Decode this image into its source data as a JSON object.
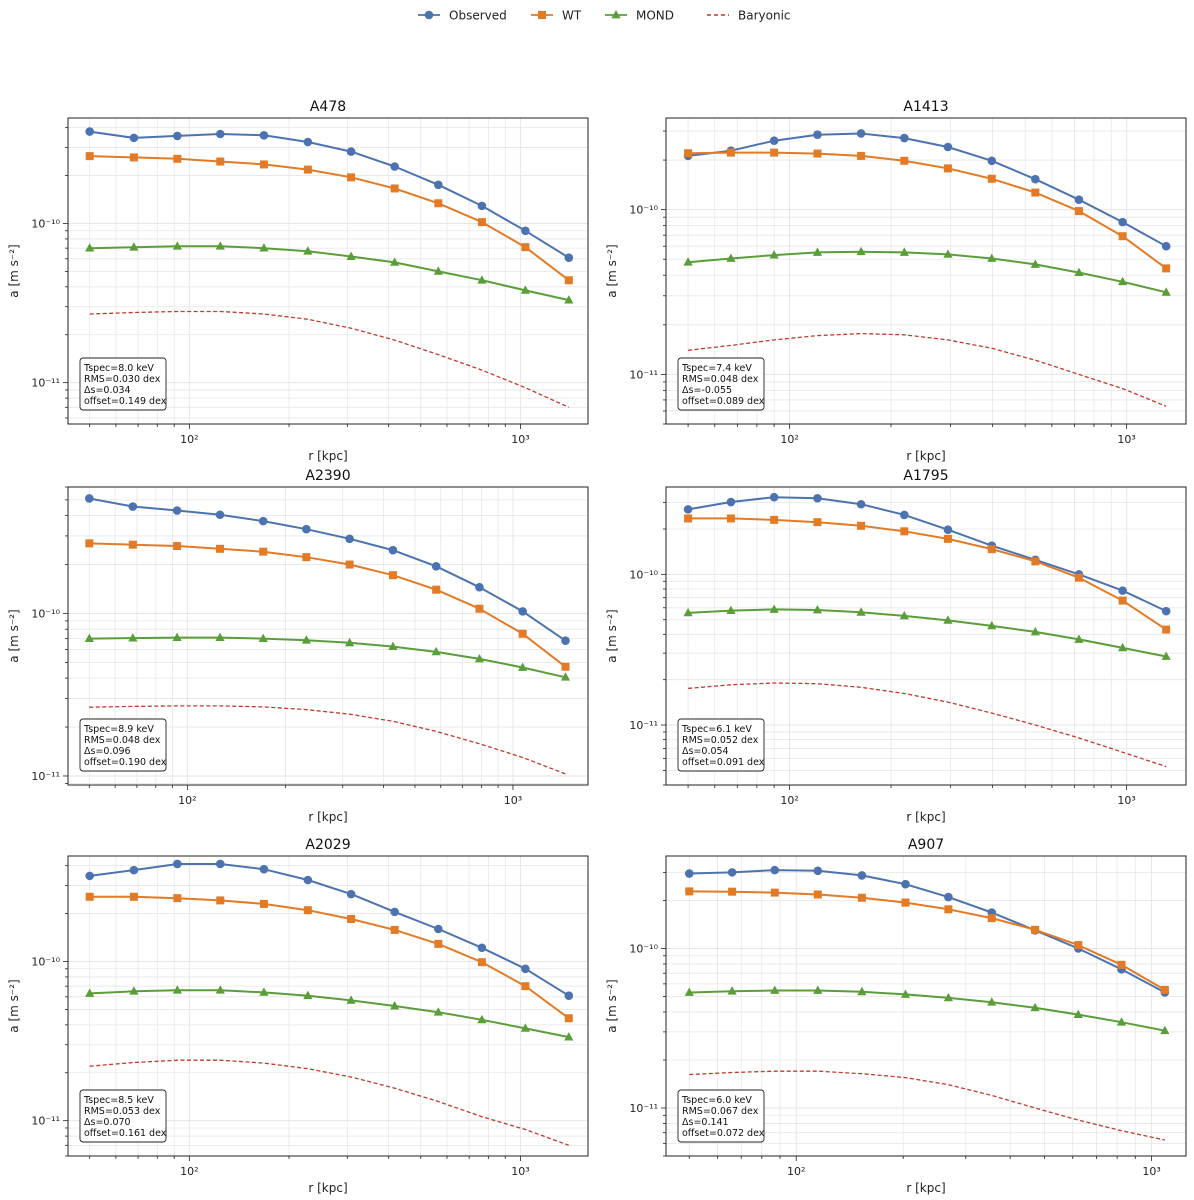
{
  "legend": {
    "entries": [
      {
        "label": "Observed",
        "color": "#4c72b0",
        "marker": "circle",
        "line": "solid"
      },
      {
        "label": "WT",
        "color": "#e37a26",
        "marker": "square",
        "line": "solid"
      },
      {
        "label": "MOND",
        "color": "#5a9e3a",
        "marker": "triangle",
        "line": "solid"
      },
      {
        "label": "Baryonic",
        "color": "#c0392b",
        "marker": "none",
        "line": "dashed"
      }
    ]
  },
  "chart_data": [
    {
      "type": "line",
      "title": "A478",
      "xlabel": "r [kpc]",
      "ylabel": "a [m s⁻²]",
      "x_scale": "log",
      "y_scale": "log",
      "xlim": [
        43,
        1600
      ],
      "ylim": [
        5.5e-12,
        4.6e-10
      ],
      "x_ticks": [
        {
          "value": 100,
          "label": "10²"
        },
        {
          "value": 1000,
          "label": "10³"
        }
      ],
      "y_ticks": [
        {
          "value": 1e-11,
          "label": "10⁻¹¹"
        },
        {
          "value": 1e-10,
          "label": "10⁻¹⁰"
        }
      ],
      "grid": true,
      "annotation": [
        "Tspec=8.0 keV",
        "RMS=0.030 dex",
        "Δs=0.034",
        "offset=0.149 dex"
      ],
      "x": [
        50,
        68,
        92,
        124,
        168,
        228,
        308,
        417,
        565,
        765,
        1035,
        1400
      ],
      "series": [
        {
          "name": "Observed",
          "values": [
            3.78e-10,
            3.45e-10,
            3.55e-10,
            3.65e-10,
            3.58e-10,
            3.25e-10,
            2.83e-10,
            2.28e-10,
            1.75e-10,
            1.29e-10,
            9e-11,
            6.1e-11
          ]
        },
        {
          "name": "WT",
          "values": [
            2.65e-10,
            2.6e-10,
            2.55e-10,
            2.45e-10,
            2.35e-10,
            2.18e-10,
            1.95e-10,
            1.66e-10,
            1.34e-10,
            1.02e-10,
            7.1e-11,
            4.4e-11
          ]
        },
        {
          "name": "MOND",
          "values": [
            7e-11,
            7.1e-11,
            7.2e-11,
            7.2e-11,
            7e-11,
            6.7e-11,
            6.2e-11,
            5.7e-11,
            5e-11,
            4.4e-11,
            3.8e-11,
            3.3e-11
          ]
        },
        {
          "name": "Baryonic",
          "values": [
            2.7e-11,
            2.76e-11,
            2.8e-11,
            2.8e-11,
            2.7e-11,
            2.5e-11,
            2.2e-11,
            1.85e-11,
            1.5e-11,
            1.2e-11,
            9.3e-12,
            7e-12
          ]
        }
      ]
    },
    {
      "type": "line",
      "title": "A1413",
      "xlabel": "r [kpc]",
      "ylabel": "a [m s⁻²]",
      "x_scale": "log",
      "y_scale": "log",
      "xlim": [
        43,
        1500
      ],
      "ylim": [
        5e-12,
        3.6e-10
      ],
      "x_ticks": [
        {
          "value": 100,
          "label": "10²"
        },
        {
          "value": 1000,
          "label": "10³"
        }
      ],
      "y_ticks": [
        {
          "value": 1e-11,
          "label": "10⁻¹¹"
        },
        {
          "value": 1e-10,
          "label": "10⁻¹⁰"
        }
      ],
      "grid": true,
      "annotation": [
        "Tspec=7.4 keV",
        "RMS=0.048 dex",
        "Δs=-0.055",
        "offset=0.089 dex"
      ],
      "x": [
        50,
        67,
        90,
        121,
        163,
        219,
        295,
        398,
        536,
        722,
        973,
        1310
      ],
      "series": [
        {
          "name": "Observed",
          "values": [
            2.12e-10,
            2.28e-10,
            2.62e-10,
            2.85e-10,
            2.9e-10,
            2.72e-10,
            2.4e-10,
            1.98e-10,
            1.53e-10,
            1.15e-10,
            8.4e-11,
            6e-11
          ]
        },
        {
          "name": "WT",
          "values": [
            2.2e-10,
            2.22e-10,
            2.22e-10,
            2.19e-10,
            2.12e-10,
            1.98e-10,
            1.78e-10,
            1.54e-10,
            1.27e-10,
            9.8e-11,
            6.9e-11,
            4.4e-11
          ]
        },
        {
          "name": "MOND",
          "values": [
            4.8e-11,
            5.05e-11,
            5.3e-11,
            5.5e-11,
            5.55e-11,
            5.5e-11,
            5.35e-11,
            5.05e-11,
            4.65e-11,
            4.15e-11,
            3.65e-11,
            3.15e-11
          ]
        },
        {
          "name": "Baryonic",
          "values": [
            1.4e-11,
            1.5e-11,
            1.62e-11,
            1.72e-11,
            1.77e-11,
            1.74e-11,
            1.62e-11,
            1.44e-11,
            1.22e-11,
            1e-11,
            8.2e-12,
            6.4e-12
          ]
        }
      ]
    },
    {
      "type": "line",
      "title": "A2390",
      "xlabel": "r [kpc]",
      "ylabel": "a [m s⁻²]",
      "x_scale": "log",
      "y_scale": "log",
      "xlim": [
        43,
        1700
      ],
      "ylim": [
        8.8e-12,
        6e-10
      ],
      "x_ticks": [
        {
          "value": 100,
          "label": "10²"
        },
        {
          "value": 1000,
          "label": "10³"
        }
      ],
      "y_ticks": [
        {
          "value": 1e-11,
          "label": "10⁻¹¹"
        },
        {
          "value": 1e-10,
          "label": "10⁻¹⁰"
        }
      ],
      "grid": true,
      "annotation": [
        "Tspec=8.9 keV",
        "RMS=0.048 dex",
        "Δs=0.096",
        "offset=0.190 dex"
      ],
      "x": [
        50,
        68,
        93,
        126,
        171,
        232,
        315,
        428,
        581,
        789,
        1071,
        1450
      ],
      "series": [
        {
          "name": "Observed",
          "values": [
            5.1e-10,
            4.55e-10,
            4.3e-10,
            4.05e-10,
            3.7e-10,
            3.3e-10,
            2.88e-10,
            2.45e-10,
            1.95e-10,
            1.45e-10,
            1.03e-10,
            6.8e-11
          ]
        },
        {
          "name": "WT",
          "values": [
            2.7e-10,
            2.65e-10,
            2.6e-10,
            2.5e-10,
            2.4e-10,
            2.22e-10,
            2e-10,
            1.72e-10,
            1.4e-10,
            1.07e-10,
            7.5e-11,
            4.7e-11
          ]
        },
        {
          "name": "MOND",
          "values": [
            7e-11,
            7.05e-11,
            7.1e-11,
            7.1e-11,
            7e-11,
            6.85e-11,
            6.6e-11,
            6.25e-11,
            5.8e-11,
            5.25e-11,
            4.65e-11,
            4.05e-11
          ]
        },
        {
          "name": "Baryonic",
          "values": [
            2.65e-11,
            2.68e-11,
            2.7e-11,
            2.7e-11,
            2.66e-11,
            2.56e-11,
            2.4e-11,
            2.17e-11,
            1.88e-11,
            1.58e-11,
            1.3e-11,
            1.03e-11
          ]
        }
      ]
    },
    {
      "type": "line",
      "title": "A1795",
      "xlabel": "r [kpc]",
      "ylabel": "a [m s⁻²]",
      "x_scale": "log",
      "y_scale": "log",
      "xlim": [
        43,
        1500
      ],
      "ylim": [
        4e-12,
        3.8e-10
      ],
      "x_ticks": [
        {
          "value": 100,
          "label": "10²"
        },
        {
          "value": 1000,
          "label": "10³"
        }
      ],
      "y_ticks": [
        {
          "value": 1e-11,
          "label": "10⁻¹¹"
        },
        {
          "value": 1e-10,
          "label": "10⁻¹⁰"
        }
      ],
      "grid": true,
      "annotation": [
        "Tspec=6.1 keV",
        "RMS=0.052 dex",
        "Δs=0.054",
        "offset=0.091 dex"
      ],
      "x": [
        50,
        67,
        90,
        121,
        163,
        219,
        295,
        398,
        536,
        722,
        973,
        1310
      ],
      "series": [
        {
          "name": "Observed",
          "values": [
            2.7e-10,
            3.02e-10,
            3.25e-10,
            3.2e-10,
            2.92e-10,
            2.48e-10,
            1.98e-10,
            1.55e-10,
            1.25e-10,
            1e-10,
            7.8e-11,
            5.7e-11
          ]
        },
        {
          "name": "WT",
          "values": [
            2.35e-10,
            2.35e-10,
            2.3e-10,
            2.22e-10,
            2.1e-10,
            1.93e-10,
            1.72e-10,
            1.47e-10,
            1.22e-10,
            9.5e-11,
            6.7e-11,
            4.3e-11
          ]
        },
        {
          "name": "MOND",
          "values": [
            5.55e-11,
            5.75e-11,
            5.85e-11,
            5.8e-11,
            5.6e-11,
            5.3e-11,
            4.95e-11,
            4.55e-11,
            4.15e-11,
            3.7e-11,
            3.25e-11,
            2.85e-11
          ]
        },
        {
          "name": "Baryonic",
          "values": [
            1.75e-11,
            1.85e-11,
            1.9e-11,
            1.88e-11,
            1.78e-11,
            1.62e-11,
            1.42e-11,
            1.2e-11,
            1e-11,
            8.2e-12,
            6.6e-12,
            5.3e-12
          ]
        }
      ]
    },
    {
      "type": "line",
      "title": "A2029",
      "xlabel": "r [kpc]",
      "ylabel": "a [m s⁻²]",
      "x_scale": "log",
      "y_scale": "log",
      "xlim": [
        43,
        1600
      ],
      "ylim": [
        6e-12,
        4.6e-10
      ],
      "x_ticks": [
        {
          "value": 100,
          "label": "10²"
        },
        {
          "value": 1000,
          "label": "10³"
        }
      ],
      "y_ticks": [
        {
          "value": 1e-11,
          "label": "10⁻¹¹"
        },
        {
          "value": 1e-10,
          "label": "10⁻¹⁰"
        }
      ],
      "grid": true,
      "annotation": [
        "Tspec=8.5 keV",
        "RMS=0.053 dex",
        "Δs=0.070",
        "offset=0.161 dex"
      ],
      "x": [
        50,
        68,
        92,
        124,
        168,
        228,
        308,
        417,
        565,
        765,
        1035,
        1400
      ],
      "series": [
        {
          "name": "Observed",
          "values": [
            3.45e-10,
            3.75e-10,
            4.1e-10,
            4.1e-10,
            3.8e-10,
            3.25e-10,
            2.65e-10,
            2.05e-10,
            1.6e-10,
            1.22e-10,
            9e-11,
            6.1e-11
          ]
        },
        {
          "name": "WT",
          "values": [
            2.55e-10,
            2.55e-10,
            2.5e-10,
            2.42e-10,
            2.3e-10,
            2.1e-10,
            1.85e-10,
            1.58e-10,
            1.29e-10,
            9.9e-11,
            7e-11,
            4.4e-11
          ]
        },
        {
          "name": "MOND",
          "values": [
            6.3e-11,
            6.5e-11,
            6.6e-11,
            6.6e-11,
            6.4e-11,
            6.1e-11,
            5.7e-11,
            5.25e-11,
            4.8e-11,
            4.3e-11,
            3.8e-11,
            3.35e-11
          ]
        },
        {
          "name": "Baryonic",
          "values": [
            2.2e-11,
            2.32e-11,
            2.4e-11,
            2.4e-11,
            2.3e-11,
            2.12e-11,
            1.88e-11,
            1.6e-11,
            1.32e-11,
            1.06e-11,
            8.8e-12,
            7e-12
          ]
        }
      ]
    },
    {
      "type": "line",
      "title": "A907",
      "xlabel": "r [kpc]",
      "ylabel": "a [m s⁻²]",
      "x_scale": "log",
      "y_scale": "log",
      "xlim": [
        43,
        1250
      ],
      "ylim": [
        5e-12,
        3.8e-10
      ],
      "x_ticks": [
        {
          "value": 100,
          "label": "10²"
        },
        {
          "value": 1000,
          "label": "10³"
        }
      ],
      "y_ticks": [
        {
          "value": 1e-11,
          "label": "10⁻¹¹"
        },
        {
          "value": 1e-10,
          "label": "10⁻¹⁰"
        }
      ],
      "grid": true,
      "annotation": [
        "Tspec=6.0 keV",
        "RMS=0.067 dex",
        "Δs=0.141",
        "offset=0.072 dex"
      ],
      "x": [
        50,
        66,
        87,
        115,
        153,
        203,
        268,
        355,
        470,
        622,
        823,
        1090
      ],
      "series": [
        {
          "name": "Observed",
          "values": [
            2.95e-10,
            3e-10,
            3.1e-10,
            3.07e-10,
            2.87e-10,
            2.53e-10,
            2.1e-10,
            1.68e-10,
            1.3e-10,
            1e-10,
            7.4e-11,
            5.3e-11
          ]
        },
        {
          "name": "WT",
          "values": [
            2.28e-10,
            2.27e-10,
            2.24e-10,
            2.18e-10,
            2.08e-10,
            1.94e-10,
            1.76e-10,
            1.55e-10,
            1.31e-10,
            1.05e-10,
            7.9e-11,
            5.5e-11
          ]
        },
        {
          "name": "MOND",
          "values": [
            5.3e-11,
            5.4e-11,
            5.45e-11,
            5.45e-11,
            5.35e-11,
            5.15e-11,
            4.9e-11,
            4.6e-11,
            4.25e-11,
            3.85e-11,
            3.45e-11,
            3.05e-11
          ]
        },
        {
          "name": "Baryonic",
          "values": [
            1.62e-11,
            1.67e-11,
            1.7e-11,
            1.7e-11,
            1.64e-11,
            1.55e-11,
            1.4e-11,
            1.2e-11,
            1e-11,
            8.4e-12,
            7.2e-12,
            6.3e-12
          ]
        }
      ]
    }
  ]
}
